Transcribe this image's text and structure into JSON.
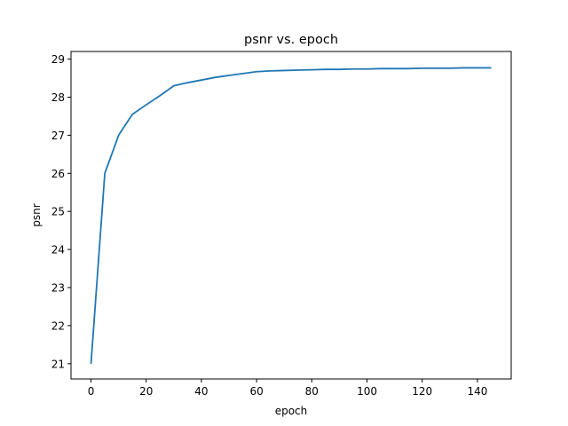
{
  "chart_data": {
    "type": "line",
    "title": "psnr vs. epoch",
    "xlabel": "epoch",
    "ylabel": "psnr",
    "xlim": [
      -7.25,
      152.25
    ],
    "ylim": [
      20.6,
      29.2
    ],
    "xticks": [
      0,
      20,
      40,
      60,
      80,
      100,
      120,
      140
    ],
    "yticks": [
      21,
      22,
      23,
      24,
      25,
      26,
      27,
      28,
      29
    ],
    "grid": false,
    "legend": "none",
    "line_color": "#1f77b4",
    "series": [
      {
        "x": [
          0,
          5,
          10,
          15,
          20,
          25,
          30,
          35,
          40,
          45,
          50,
          55,
          60,
          65,
          70,
          75,
          80,
          85,
          90,
          95,
          100,
          105,
          110,
          115,
          120,
          125,
          130,
          135,
          140,
          145
        ],
        "y": [
          21.0,
          26.0,
          27.0,
          27.55,
          27.8,
          28.04,
          28.3,
          28.38,
          28.45,
          28.52,
          28.57,
          28.62,
          28.67,
          28.69,
          28.7,
          28.71,
          28.72,
          28.73,
          28.73,
          28.74,
          28.74,
          28.75,
          28.75,
          28.75,
          28.76,
          28.76,
          28.76,
          28.77,
          28.77,
          28.77
        ]
      }
    ]
  }
}
